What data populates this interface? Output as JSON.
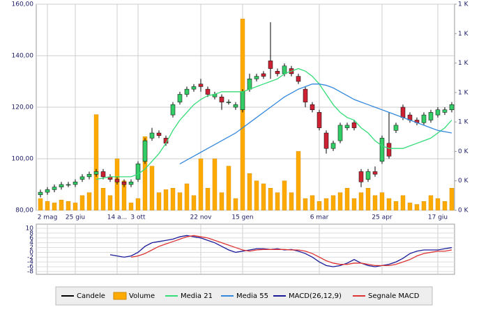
{
  "chart_data": [
    {
      "type": "candlestick",
      "categories": [
        null,
        "2 mag",
        null,
        null,
        null,
        "25 giu",
        null,
        null,
        null,
        null,
        null,
        "14 a...",
        null,
        null,
        "3 ott",
        null,
        null,
        null,
        null,
        null,
        null,
        null,
        null,
        "22 nov",
        null,
        null,
        null,
        null,
        null,
        "15 gen",
        null,
        null,
        null,
        null,
        null,
        null,
        null,
        null,
        null,
        null,
        "6 mar",
        null,
        null,
        null,
        null,
        null,
        null,
        null,
        null,
        "25 apr",
        null,
        null,
        null,
        null,
        null,
        null,
        null,
        "17 giu",
        null,
        null
      ],
      "ylim": [
        80,
        160
      ],
      "yticks": [
        {
          "value": 80,
          "label": "80,00"
        },
        {
          "value": 100,
          "label": "100,00"
        },
        {
          "value": 120,
          "label": "120,00"
        },
        {
          "value": 140,
          "label": "140,00"
        },
        {
          "value": 160,
          "label": "160,00"
        }
      ],
      "y2lim": [
        0,
        1.4
      ],
      "y2ticks": [
        {
          "value": 0,
          "label": "0 K"
        },
        {
          "value": 0.2,
          "label": "0 K"
        },
        {
          "value": 0.4,
          "label": "0 K"
        },
        {
          "value": 0.6,
          "label": "1 K"
        },
        {
          "value": 0.8,
          "label": "1 K"
        },
        {
          "value": 1.0,
          "label": "1 K"
        },
        {
          "value": 1.2,
          "label": "1 K"
        },
        {
          "value": 1.4,
          "label": "1 K"
        }
      ],
      "grid": true,
      "series": [
        {
          "name": "Candele",
          "color": "#000000",
          "up_color": "#33cc66",
          "down_color": "#cc2233",
          "open": [
            86,
            87,
            88,
            89,
            90,
            90,
            92,
            93,
            94,
            95,
            93,
            92,
            91,
            90,
            92,
            99,
            108,
            110,
            108,
            117,
            122,
            125,
            127,
            129,
            127,
            124,
            124,
            122,
            120,
            119,
            127,
            131,
            133,
            138,
            134,
            133,
            135,
            132,
            127,
            121,
            118,
            110,
            104,
            107,
            112,
            114,
            95,
            92,
            95,
            99,
            106,
            111,
            120,
            117,
            115,
            114,
            115,
            117,
            118,
            119
          ],
          "high": [
            88,
            89,
            90,
            91,
            91,
            92,
            94,
            95,
            96,
            96,
            94,
            93,
            92,
            92,
            99,
            108,
            112,
            111,
            109,
            122,
            126,
            128,
            129,
            131,
            128,
            126,
            125,
            123,
            122,
            127,
            133,
            133,
            134,
            153,
            135,
            137,
            136,
            133,
            128,
            122,
            119,
            111,
            107,
            114,
            114,
            115,
            96,
            96,
            97,
            109,
            118,
            114,
            121,
            118,
            116,
            118,
            119,
            120,
            120,
            122
          ],
          "low": [
            85,
            86,
            87,
            88,
            89,
            89,
            91,
            92,
            93,
            92,
            91,
            90,
            89,
            89,
            91,
            98,
            107,
            108,
            105,
            116,
            121,
            124,
            126,
            126,
            124,
            123,
            119,
            121,
            119,
            118,
            126,
            130,
            131,
            131,
            132,
            132,
            132,
            129,
            120,
            118,
            111,
            102,
            103,
            106,
            111,
            111,
            89,
            91,
            93,
            98,
            100,
            110,
            115,
            114,
            113,
            113,
            114,
            116,
            117,
            118
          ],
          "close": [
            87,
            88,
            89,
            90,
            90,
            91,
            93,
            94,
            95,
            93,
            92,
            91,
            90,
            91,
            98,
            107,
            110,
            109,
            106,
            121,
            125,
            127,
            128,
            128,
            125,
            125,
            122,
            122,
            121,
            126,
            131,
            132,
            132,
            135,
            133,
            136,
            133,
            130,
            122,
            119,
            112,
            104,
            106,
            113,
            113,
            112,
            91,
            95,
            94,
            108,
            101,
            113,
            116,
            115,
            114,
            117,
            118,
            119,
            119,
            121
          ]
        },
        {
          "name": "Volume",
          "color": "#ffaa00",
          "axis": "y2",
          "values": [
            0.08,
            0.06,
            0.05,
            0.07,
            0.06,
            0.05,
            0.1,
            0.12,
            0.65,
            0.15,
            0.1,
            0.35,
            0.2,
            0.05,
            0.08,
            0.5,
            0.3,
            0.12,
            0.14,
            0.15,
            0.12,
            0.18,
            0.1,
            0.35,
            0.15,
            0.35,
            0.12,
            0.3,
            0.08,
            1.3,
            0.25,
            0.2,
            0.18,
            0.15,
            0.12,
            0.2,
            0.12,
            0.4,
            0.08,
            0.1,
            0.06,
            0.08,
            0.1,
            0.12,
            0.15,
            0.08,
            0.12,
            0.15,
            0.1,
            0.12,
            0.08,
            0.06,
            0.1,
            0.05,
            0.04,
            0.06,
            0.1,
            0.08,
            0.06,
            0.15
          ]
        },
        {
          "name": "Media 21",
          "color": "#33dd77",
          "values": [
            null,
            null,
            null,
            null,
            null,
            null,
            null,
            null,
            92,
            92.5,
            93,
            93,
            93,
            93,
            94,
            96,
            99,
            102,
            106,
            111,
            115,
            118,
            121,
            123,
            124.5,
            125,
            126,
            126,
            126,
            126,
            127,
            128,
            129,
            130,
            131,
            133,
            134,
            135,
            134,
            132,
            129,
            125,
            121,
            118,
            116,
            115,
            112,
            110,
            107,
            105,
            104,
            104,
            104,
            105,
            106,
            107,
            108,
            110,
            112,
            115
          ]
        },
        {
          "name": "Media 55",
          "color": "#3388dd",
          "values": [
            null,
            null,
            null,
            null,
            null,
            null,
            null,
            null,
            null,
            null,
            null,
            null,
            null,
            null,
            null,
            null,
            null,
            null,
            null,
            null,
            98,
            99.5,
            101,
            102.5,
            104,
            105.5,
            107,
            108.5,
            110,
            112,
            114,
            116,
            118,
            120,
            122,
            124,
            125.5,
            127,
            128,
            129,
            129,
            128.5,
            127.5,
            126,
            124.5,
            123,
            122,
            121,
            120,
            119,
            118,
            117,
            116,
            115,
            114,
            113,
            112,
            111,
            110.5,
            110
          ]
        }
      ]
    },
    {
      "type": "line",
      "ylim": [
        -8,
        10
      ],
      "yticks": [
        -8,
        -6,
        -4,
        -2,
        0,
        2,
        4,
        6,
        8,
        10
      ],
      "grid": true,
      "series": [
        {
          "name": "MACD(26,12,9)",
          "color": "#1a1a99",
          "values": [
            null,
            null,
            null,
            null,
            null,
            null,
            null,
            null,
            null,
            null,
            -1,
            -1.5,
            -2,
            -1.5,
            0,
            2.5,
            4,
            4.5,
            5,
            5.5,
            6.5,
            7,
            6.5,
            6,
            5,
            4,
            2.5,
            1,
            0,
            0.5,
            1,
            1.5,
            1.5,
            1.2,
            1.5,
            1,
            1.2,
            0.5,
            -0.5,
            -2,
            -4,
            -5.5,
            -6,
            -5.5,
            -4.5,
            -3,
            -4.5,
            -5.5,
            -6,
            -5.5,
            -5,
            -4,
            -2.5,
            -0.5,
            0.5,
            1,
            1,
            1,
            1.5,
            2
          ]
        },
        {
          "name": "Segnale MACD",
          "color": "#dd3333",
          "values": [
            null,
            null,
            null,
            null,
            null,
            null,
            null,
            null,
            null,
            null,
            null,
            null,
            null,
            -2,
            -1.5,
            -0.5,
            1,
            2.5,
            3.5,
            4.5,
            5.5,
            6.5,
            7,
            6.5,
            6,
            5,
            4,
            3,
            2,
            1,
            0.5,
            1,
            1.2,
            1.2,
            1.2,
            1.2,
            1,
            1,
            0.5,
            -0.5,
            -2,
            -3.5,
            -4.5,
            -5,
            -5,
            -4.5,
            -4.5,
            -5,
            -5.5,
            -5.5,
            -5.5,
            -5,
            -4,
            -3,
            -1.5,
            -0.5,
            0,
            0.5,
            0.5,
            1
          ]
        }
      ]
    }
  ]
}
